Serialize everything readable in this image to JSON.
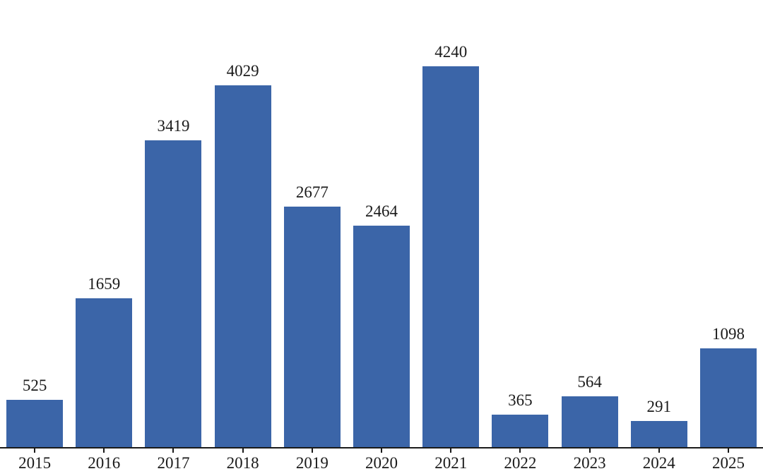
{
  "chart_data": {
    "type": "bar",
    "categories": [
      "2015",
      "2016",
      "2017",
      "2018",
      "2019",
      "2020",
      "2021",
      "2022",
      "2023",
      "2024",
      "2025"
    ],
    "values": [
      525,
      1659,
      3419,
      4029,
      2677,
      2464,
      4240,
      365,
      564,
      291,
      1098
    ],
    "title": "",
    "xlabel": "",
    "ylabel": "",
    "ylim": [
      0,
      4240
    ],
    "grid": false,
    "legend": "none",
    "data_labels_shown": true,
    "bar_color": "#3B65A8",
    "axis_color": "#1a1a1a",
    "text_color": "#1a1a1a"
  }
}
